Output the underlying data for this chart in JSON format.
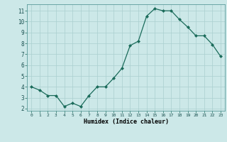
{
  "x": [
    0,
    1,
    2,
    3,
    4,
    5,
    6,
    7,
    8,
    9,
    10,
    11,
    12,
    13,
    14,
    15,
    16,
    17,
    18,
    19,
    20,
    21,
    22,
    23
  ],
  "y": [
    4.0,
    3.7,
    3.2,
    3.2,
    2.2,
    2.5,
    2.2,
    3.2,
    4.0,
    4.0,
    4.8,
    5.7,
    7.8,
    8.2,
    10.5,
    11.2,
    11.0,
    11.0,
    10.2,
    9.5,
    8.7,
    8.7,
    7.9,
    6.8
  ],
  "xlabel": "Humidex (Indice chaleur)",
  "ylim": [
    1.8,
    11.6
  ],
  "yticks": [
    2,
    3,
    4,
    5,
    6,
    7,
    8,
    9,
    10,
    11
  ],
  "xticks": [
    0,
    1,
    2,
    3,
    4,
    5,
    6,
    7,
    8,
    9,
    10,
    11,
    12,
    13,
    14,
    15,
    16,
    17,
    18,
    19,
    20,
    21,
    22,
    23
  ],
  "line_color": "#1a6b5a",
  "marker_color": "#1a6b5a",
  "bg_color": "#cce8e8",
  "grid_color": "#aacfcf",
  "axis_bg": "#cce8e8"
}
